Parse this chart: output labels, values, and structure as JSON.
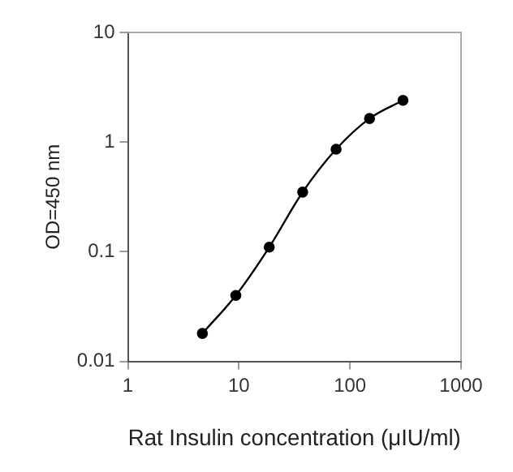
{
  "chart_data": {
    "type": "line",
    "xlabel": "Rat Insulin concentration (μIU/ml)",
    "ylabel": "OD=450 nm",
    "x": [
      4.69,
      9.38,
      18.75,
      37.5,
      75,
      150,
      300
    ],
    "series": [
      {
        "color": "#000000",
        "values": [
          0.018,
          0.04,
          0.11,
          0.35,
          0.86,
          1.64,
          2.4
        ]
      }
    ],
    "log": "xy",
    "xlim": [
      1,
      1000
    ],
    "xticks": [
      1,
      10,
      100,
      1000
    ],
    "ylim": [
      0.01,
      10
    ],
    "yticks": [
      0.01,
      0.1,
      1,
      10
    ],
    "grid": false,
    "legend": false,
    "marker": "circle",
    "line_style": "solid"
  }
}
